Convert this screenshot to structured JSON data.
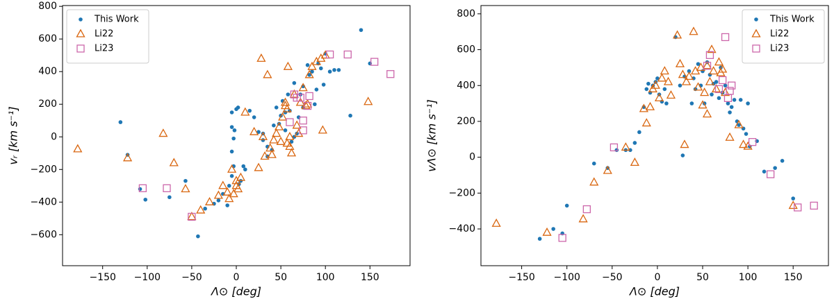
{
  "chart_data": [
    {
      "type": "scatter",
      "xlabel": "Λ⊙ [deg]",
      "ylabel": "vᵣ [km s⁻¹]",
      "legend": "upper-left",
      "xlim": [
        -195,
        195
      ],
      "ylim": [
        -790,
        805
      ],
      "xticks": [
        {
          "value": -150,
          "label": "−150"
        },
        {
          "value": -100,
          "label": "−100"
        },
        {
          "value": -50,
          "label": "−50"
        },
        0,
        50,
        100,
        150
      ],
      "yticks": [
        {
          "value": -600,
          "label": "−600"
        },
        {
          "value": -400,
          "label": "−400"
        },
        {
          "value": -200,
          "label": "−200"
        },
        0,
        200,
        400,
        600,
        800
      ],
      "series": [
        {
          "name": "This Work",
          "color": "#1f77b4",
          "marker": "circle",
          "x": [
            -130,
            -122,
            -108,
            -102,
            -75,
            -57,
            -43,
            -35,
            -25,
            -20,
            -15,
            -10,
            -8,
            -5,
            -3,
            -5,
            -3,
            -2,
            -5,
            -5,
            0,
            2,
            3,
            5,
            8,
            10,
            15,
            20,
            25,
            30,
            30,
            35,
            35,
            40,
            42,
            45,
            48,
            50,
            52,
            55,
            55,
            58,
            60,
            62,
            65,
            65,
            68,
            70,
            72,
            75,
            75,
            80,
            82,
            85,
            88,
            90,
            92,
            95,
            98,
            100,
            105,
            110,
            115,
            128,
            140,
            150
          ],
          "values": [
            90,
            -110,
            -320,
            -385,
            -370,
            -270,
            -610,
            -440,
            -410,
            -390,
            -350,
            -420,
            -300,
            -240,
            -180,
            -90,
            -10,
            40,
            60,
            150,
            170,
            180,
            -290,
            -270,
            -180,
            -200,
            160,
            120,
            30,
            20,
            -20,
            -60,
            -120,
            -80,
            70,
            180,
            80,
            130,
            220,
            150,
            40,
            260,
            160,
            -30,
            0,
            330,
            20,
            120,
            260,
            310,
            180,
            440,
            380,
            400,
            200,
            290,
            450,
            420,
            320,
            510,
            400,
            410,
            410,
            130,
            655,
            450
          ]
        },
        {
          "name": "Li22",
          "color": "#d9660f",
          "marker": "triangle",
          "x": [
            -178,
            -122,
            -82,
            -70,
            -57,
            -50,
            -40,
            -30,
            -20,
            -15,
            -10,
            -8,
            -5,
            -3,
            0,
            0,
            2,
            5,
            10,
            20,
            25,
            28,
            30,
            32,
            35,
            38,
            40,
            42,
            45,
            48,
            50,
            52,
            55,
            55,
            57,
            58,
            60,
            62,
            65,
            68,
            70,
            72,
            75,
            78,
            80,
            82,
            85,
            90,
            95,
            97,
            100,
            148,
            57,
            60
          ],
          "values": [
            -75,
            -130,
            20,
            -160,
            -320,
            -490,
            -450,
            -400,
            -360,
            -300,
            -340,
            -380,
            -200,
            -350,
            -270,
            -300,
            -320,
            -250,
            150,
            30,
            -190,
            480,
            0,
            -120,
            380,
            -70,
            -110,
            -20,
            20,
            60,
            -30,
            120,
            210,
            190,
            170,
            430,
            0,
            -100,
            260,
            70,
            20,
            210,
            300,
            190,
            200,
            380,
            430,
            460,
            480,
            40,
            500,
            215,
            -40,
            -60
          ]
        },
        {
          "name": "Li23",
          "color": "#cc66aa",
          "marker": "square",
          "x": [
            -105,
            -78,
            -50,
            65,
            72,
            75,
            80,
            82,
            75,
            68,
            60,
            105,
            125,
            155,
            173
          ],
          "values": [
            -315,
            -315,
            -490,
            260,
            240,
            100,
            190,
            250,
            40,
            240,
            90,
            505,
            505,
            460,
            385
          ]
        }
      ]
    },
    {
      "type": "scatter",
      "xlabel": "Λ⊙ [deg]",
      "ylabel": "vΛ⊙ [km s⁻¹]",
      "legend": "upper-right",
      "xlim": [
        -195,
        189
      ],
      "ylim": [
        -605,
        846
      ],
      "xticks": [
        {
          "value": -150,
          "label": "−150"
        },
        {
          "value": -100,
          "label": "−100"
        },
        {
          "value": -50,
          "label": "−50"
        },
        0,
        50,
        100,
        150
      ],
      "yticks": [
        {
          "value": -400,
          "label": "−400"
        },
        {
          "value": -200,
          "label": "−200"
        },
        0,
        200,
        400,
        600,
        800
      ],
      "series": [
        {
          "name": "This Work",
          "color": "#1f77b4",
          "marker": "circle",
          "x": [
            -130,
            -115,
            -105,
            -100,
            -70,
            -55,
            -45,
            -35,
            -30,
            -25,
            -20,
            -15,
            -12,
            -10,
            -8,
            -5,
            -2,
            0,
            2,
            5,
            8,
            10,
            20,
            25,
            28,
            30,
            35,
            38,
            40,
            42,
            45,
            48,
            50,
            52,
            55,
            58,
            60,
            62,
            65,
            68,
            70,
            72,
            75,
            78,
            80,
            82,
            85,
            88,
            90,
            92,
            95,
            98,
            100,
            102,
            110,
            118,
            130,
            138,
            150
          ],
          "values": [
            -455,
            -400,
            -425,
            -270,
            -35,
            -60,
            40,
            40,
            40,
            80,
            140,
            280,
            380,
            410,
            360,
            400,
            420,
            440,
            350,
            310,
            380,
            300,
            670,
            400,
            10,
            450,
            480,
            300,
            440,
            380,
            520,
            400,
            480,
            300,
            530,
            460,
            350,
            410,
            420,
            330,
            500,
            360,
            400,
            300,
            250,
            280,
            320,
            200,
            180,
            320,
            160,
            130,
            300,
            60,
            90,
            -80,
            -60,
            -20,
            -230
          ]
        },
        {
          "name": "Li22",
          "color": "#d9660f",
          "marker": "triangle",
          "x": [
            -178,
            -122,
            -82,
            -70,
            -55,
            -35,
            -25,
            -15,
            -12,
            -8,
            -5,
            -2,
            2,
            5,
            8,
            12,
            15,
            22,
            25,
            28,
            30,
            32,
            35,
            40,
            42,
            45,
            48,
            50,
            52,
            55,
            55,
            58,
            60,
            62,
            65,
            68,
            70,
            72,
            75,
            80,
            90,
            95,
            100,
            150
          ],
          "values": [
            -370,
            -420,
            -345,
            -140,
            -75,
            55,
            -30,
            270,
            190,
            280,
            380,
            400,
            330,
            440,
            480,
            420,
            345,
            680,
            520,
            460,
            70,
            420,
            450,
            700,
            480,
            390,
            500,
            290,
            360,
            240,
            510,
            420,
            600,
            480,
            380,
            530,
            470,
            490,
            360,
            110,
            180,
            70,
            60,
            -270
          ]
        },
        {
          "name": "Li23",
          "color": "#cc66aa",
          "marker": "square",
          "x": [
            -105,
            -78,
            -48,
            55,
            58,
            68,
            72,
            75,
            78,
            80,
            82,
            105,
            125,
            155,
            173
          ],
          "values": [
            -450,
            -290,
            55,
            510,
            570,
            380,
            430,
            670,
            330,
            370,
            400,
            85,
            -95,
            -280,
            -270
          ]
        }
      ]
    }
  ]
}
